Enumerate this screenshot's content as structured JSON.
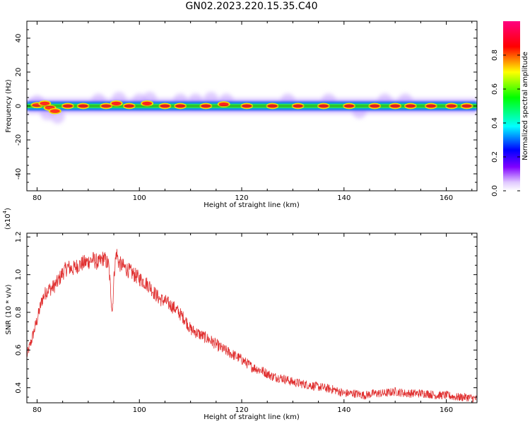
{
  "title": "GN02.2023.220.15.35.C40",
  "colors": {
    "snr_line": "#e03030",
    "axis": "#000000",
    "background": "#ffffff"
  },
  "chart_data": [
    {
      "type": "heatmap",
      "xlabel": "Height of straight line (km)",
      "ylabel": "Frequency (Hz)",
      "xlim": [
        78,
        166
      ],
      "ylim": [
        -50,
        50
      ],
      "x_ticks": [
        80,
        100,
        120,
        140,
        160
      ],
      "y_ticks": [
        -40,
        -20,
        0,
        20,
        40
      ],
      "grid": false,
      "colorbar": {
        "label": "Normalized spectral amplitude",
        "range": [
          0,
          1
        ],
        "ticks": [
          "0.0",
          "0.2",
          "0.4",
          "0.6",
          "0.8"
        ],
        "tick_values": [
          0.0,
          0.2,
          0.4,
          0.6,
          0.8
        ]
      },
      "band_center_hz": 0,
      "band_halfwidth_hz": 2,
      "peaks": [
        {
          "x": 80,
          "f": 0.5,
          "amp": 0.9
        },
        {
          "x": 81.5,
          "f": 1.5,
          "amp": 0.95
        },
        {
          "x": 82.5,
          "f": -1.0,
          "amp": 0.9
        },
        {
          "x": 83.5,
          "f": -3.0,
          "amp": 0.9
        },
        {
          "x": 86,
          "f": 0,
          "amp": 1.0
        },
        {
          "x": 89,
          "f": 0,
          "amp": 1.0
        },
        {
          "x": 93.5,
          "f": 0,
          "amp": 0.95
        },
        {
          "x": 95.5,
          "f": 1.5,
          "amp": 1.0
        },
        {
          "x": 98,
          "f": 0,
          "amp": 1.0
        },
        {
          "x": 101.5,
          "f": 1.5,
          "amp": 1.0
        },
        {
          "x": 105,
          "f": 0,
          "amp": 1.0
        },
        {
          "x": 108,
          "f": 0,
          "amp": 1.0
        },
        {
          "x": 113,
          "f": 0,
          "amp": 1.0
        },
        {
          "x": 116.5,
          "f": 1.0,
          "amp": 1.0
        },
        {
          "x": 121,
          "f": 0,
          "amp": 1.0
        },
        {
          "x": 126,
          "f": 0,
          "amp": 1.0
        },
        {
          "x": 131,
          "f": 0,
          "amp": 1.0
        },
        {
          "x": 136,
          "f": 0,
          "amp": 1.0
        },
        {
          "x": 141,
          "f": 0,
          "amp": 1.0
        },
        {
          "x": 146,
          "f": 0,
          "amp": 1.0
        },
        {
          "x": 150,
          "f": 0,
          "amp": 1.0
        },
        {
          "x": 153,
          "f": 0,
          "amp": 1.0
        },
        {
          "x": 157,
          "f": 0,
          "amp": 1.0
        },
        {
          "x": 161,
          "f": 0,
          "amp": 1.0
        },
        {
          "x": 164,
          "f": 0,
          "amp": 1.0
        }
      ],
      "halo_spots": [
        {
          "x": 80,
          "f": 2
        },
        {
          "x": 82,
          "f": -4
        },
        {
          "x": 84,
          "f": -6
        },
        {
          "x": 92,
          "f": 3
        },
        {
          "x": 96,
          "f": 4
        },
        {
          "x": 100,
          "f": 3
        },
        {
          "x": 102,
          "f": 4
        },
        {
          "x": 108,
          "f": 3
        },
        {
          "x": 111,
          "f": 3
        },
        {
          "x": 114,
          "f": 4
        },
        {
          "x": 117,
          "f": 3
        },
        {
          "x": 129,
          "f": 3
        },
        {
          "x": 137,
          "f": 3
        },
        {
          "x": 143,
          "f": -3
        },
        {
          "x": 148,
          "f": 3
        },
        {
          "x": 152,
          "f": 3
        }
      ]
    },
    {
      "type": "line",
      "xlabel": "Height of straight line (km)",
      "ylabel": "SNR (10 * v/v)",
      "y_multiplier_label": "(x10",
      "y_multiplier_exponent": "4",
      "y_multiplier_close": ")",
      "xlim": [
        78,
        166
      ],
      "ylim": [
        0.32,
        1.22
      ],
      "x_ticks": [
        80,
        100,
        120,
        140,
        160
      ],
      "y_ticks": [
        0.4,
        0.6,
        0.8,
        1.0,
        1.2
      ],
      "y_tick_labels": [
        "0.4",
        "0.6",
        "0.8",
        "1.0",
        "1.2"
      ],
      "grid": false,
      "series": [
        {
          "color": "#e03030",
          "noise": 0.03,
          "x": [
            78,
            79,
            80,
            81,
            82,
            83,
            84,
            85,
            86,
            87,
            88,
            89,
            90,
            91,
            92,
            93,
            94,
            94.7,
            95.1,
            95.5,
            96,
            97,
            98,
            99,
            100,
            101,
            102,
            103,
            104,
            105,
            106,
            107,
            108,
            109,
            110,
            112,
            114,
            116,
            118,
            120,
            122,
            124,
            126,
            128,
            130,
            132,
            134,
            136,
            138,
            140,
            142,
            144,
            146,
            148,
            150,
            152,
            154,
            156,
            158,
            160,
            162,
            164,
            166
          ],
          "y": [
            0.57,
            0.66,
            0.76,
            0.87,
            0.92,
            0.93,
            0.96,
            1.01,
            1.04,
            1.03,
            1.05,
            1.06,
            1.07,
            1.08,
            1.06,
            1.09,
            1.05,
            0.8,
            1.02,
            1.12,
            1.06,
            1.04,
            1.02,
            1.0,
            0.98,
            0.96,
            0.94,
            0.9,
            0.87,
            0.86,
            0.84,
            0.82,
            0.79,
            0.76,
            0.71,
            0.68,
            0.65,
            0.61,
            0.58,
            0.55,
            0.51,
            0.49,
            0.46,
            0.45,
            0.43,
            0.42,
            0.41,
            0.4,
            0.39,
            0.37,
            0.37,
            0.36,
            0.37,
            0.37,
            0.38,
            0.37,
            0.37,
            0.37,
            0.36,
            0.36,
            0.35,
            0.35,
            0.34
          ]
        }
      ]
    }
  ]
}
